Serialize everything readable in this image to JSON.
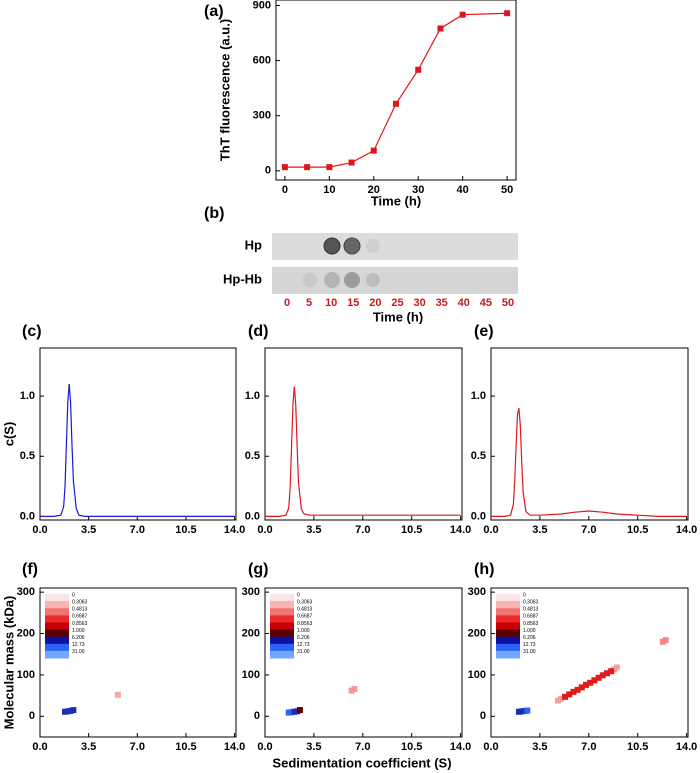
{
  "chart_data": [
    {
      "type": "line",
      "title": "(a)",
      "y_label": "ThT fluorescence (a.u.)",
      "x_label": "Time (h)",
      "xlim": [
        -2,
        52
      ],
      "ylim": [
        -50,
        930
      ],
      "xticks": [
        0,
        10,
        20,
        30,
        40,
        50
      ],
      "yticks": [
        0,
        300,
        600,
        900
      ],
      "markers": true,
      "series": [
        {
          "color": "#e0161a",
          "x": [
            0,
            5,
            10,
            15,
            20,
            25,
            30,
            35,
            40,
            50
          ],
          "values": [
            20,
            20,
            20,
            45,
            110,
            365,
            550,
            775,
            850,
            858
          ]
        }
      ]
    },
    {
      "type": "blot",
      "title": "(b)",
      "rows": [
        "Hp",
        "Hp-Hb"
      ],
      "categories": [
        "0",
        "5",
        "10",
        "15",
        "20",
        "25",
        "30",
        "35",
        "40",
        "45",
        "50"
      ],
      "x_label": "Time (h)"
    },
    {
      "type": "line",
      "title": "(c)",
      "y_label": "c(S)",
      "xlim": [
        0,
        14.1
      ],
      "ylim": [
        -0.03,
        1.4
      ],
      "xticks": [
        {
          "value": 0,
          "label": "0.0"
        },
        3.5,
        {
          "value": 7,
          "label": "7.0"
        },
        10.5,
        {
          "value": 14,
          "label": "14.0"
        }
      ],
      "yticks": [
        {
          "value": 0,
          "label": "0.0"
        },
        0.5,
        {
          "value": 1,
          "label": "1.0"
        }
      ],
      "markers": false,
      "series": [
        {
          "color": "#1a1ad0",
          "x": [
            0,
            1.0,
            1.5,
            1.7,
            1.8,
            1.9,
            2.0,
            2.1,
            2.2,
            2.3,
            2.4,
            2.6,
            2.8,
            3.2,
            4,
            7,
            10.5,
            14
          ],
          "values": [
            0,
            0,
            0.01,
            0.08,
            0.25,
            0.6,
            0.95,
            1.1,
            0.95,
            0.6,
            0.3,
            0.07,
            0.01,
            0,
            0,
            0,
            0,
            0
          ]
        }
      ]
    },
    {
      "type": "line",
      "title": "(d)",
      "xlim": [
        0,
        14.1
      ],
      "ylim": [
        -0.03,
        1.4
      ],
      "xticks": [
        {
          "value": 0,
          "label": "0.0"
        },
        3.5,
        {
          "value": 7,
          "label": "7.0"
        },
        10.5,
        {
          "value": 14,
          "label": "14.0"
        }
      ],
      "yticks": [
        {
          "value": 0,
          "label": "0.0"
        },
        0.5,
        {
          "value": 1,
          "label": "1.0"
        }
      ],
      "markers": false,
      "series": [
        {
          "color": "#e0161a",
          "x": [
            0,
            1.0,
            1.5,
            1.7,
            1.8,
            1.9,
            2.0,
            2.1,
            2.2,
            2.3,
            2.4,
            2.6,
            2.8,
            3.2,
            4,
            7,
            10.5,
            14
          ],
          "values": [
            0,
            0,
            0.01,
            0.07,
            0.24,
            0.58,
            0.93,
            1.08,
            0.93,
            0.58,
            0.28,
            0.06,
            0.02,
            0.01,
            0.01,
            0.01,
            0.01,
            0.01
          ]
        }
      ]
    },
    {
      "type": "line",
      "title": "(e)",
      "xlim": [
        0,
        14.1
      ],
      "ylim": [
        -0.03,
        1.4
      ],
      "xticks": [
        {
          "value": 0,
          "label": "0.0"
        },
        3.5,
        {
          "value": 7,
          "label": "7.0"
        },
        10.5,
        {
          "value": 14,
          "label": "14.0"
        }
      ],
      "yticks": [
        {
          "value": 0,
          "label": "0.0"
        },
        0.5,
        {
          "value": 1,
          "label": "1.0"
        }
      ],
      "markers": false,
      "series": [
        {
          "color": "#e0161a",
          "x": [
            0,
            1.0,
            1.4,
            1.6,
            1.7,
            1.8,
            1.9,
            2.0,
            2.1,
            2.2,
            2.3,
            2.5,
            2.8,
            3.5,
            5,
            6,
            7,
            8,
            9,
            10.5,
            12,
            14
          ],
          "values": [
            0,
            0,
            0.01,
            0.1,
            0.3,
            0.6,
            0.85,
            0.9,
            0.75,
            0.45,
            0.2,
            0.04,
            0.01,
            0.01,
            0.02,
            0.035,
            0.045,
            0.035,
            0.02,
            0.01,
            0,
            0
          ]
        }
      ]
    },
    {
      "type": "scatter",
      "title": "(f)",
      "y_label": "Molecular mass (kDa)",
      "xlim": [
        0,
        14.1
      ],
      "ylim": [
        -50,
        310
      ],
      "xticks": [
        {
          "value": 0,
          "label": "0.0"
        },
        3.5,
        {
          "value": 7,
          "label": "7.0"
        },
        10.5,
        {
          "value": 14,
          "label": "14.0"
        }
      ],
      "yticks": [
        0,
        100,
        200,
        300
      ],
      "colorbar": {
        "colors": [
          "#fde4e4",
          "#f8b4b4",
          "#f27474",
          "#ec2a2a",
          "#c40000",
          "#5a0000",
          "#1010a0",
          "#2a64f0",
          "#6ea8ff"
        ],
        "ticks": [
          0,
          0.3063,
          0.4813,
          0.6687,
          0.8563,
          {
            "value": 1,
            "label": "1.000"
          },
          6.206,
          12.73,
          {
            "value": 31,
            "label": "31.00"
          }
        ]
      },
      "series": [
        {
          "color": "#1a2fb8",
          "x": [
            1.8,
            2.0,
            2.2,
            2.4
          ],
          "values": [
            11,
            12,
            13,
            15
          ]
        },
        {
          "color": "#f4a8a8",
          "x": [
            5.6
          ],
          "values": [
            52
          ]
        }
      ]
    },
    {
      "type": "scatter",
      "title": "(g)",
      "x_label": "Sedimentation coefficient (S)",
      "xlim": [
        0,
        14.1
      ],
      "ylim": [
        -50,
        310
      ],
      "xticks": [
        {
          "value": 0,
          "label": "0.0"
        },
        3.5,
        {
          "value": 7,
          "label": "7.0"
        },
        10.5,
        {
          "value": 14,
          "label": "14.0"
        }
      ],
      "yticks": [
        0,
        100,
        200,
        300
      ],
      "colorbar": {
        "colors": [
          "#fde4e4",
          "#f8b4b4",
          "#f27474",
          "#ec2a2a",
          "#c40000",
          "#5a0000",
          "#1010a0",
          "#2a64f0",
          "#6ea8ff"
        ],
        "ticks": [
          0,
          0.3063,
          0.4813,
          0.6687,
          0.8563,
          {
            "value": 1,
            "label": "1.000"
          },
          6.206,
          12.73,
          {
            "value": 31,
            "label": "31.00"
          }
        ]
      },
      "series": [
        {
          "color": "#2a64f0",
          "x": [
            1.7,
            1.9
          ],
          "values": [
            9,
            10
          ]
        },
        {
          "color": "#1a2fb8",
          "x": [
            2.1,
            2.3
          ],
          "values": [
            11,
            12
          ]
        },
        {
          "color": "#5a0000",
          "x": [
            2.5
          ],
          "values": [
            15
          ]
        },
        {
          "color": "#f29a9a",
          "x": [
            6.2,
            6.4
          ],
          "values": [
            62,
            66
          ]
        }
      ]
    },
    {
      "type": "scatter",
      "title": "(h)",
      "xlim": [
        0,
        14.1
      ],
      "ylim": [
        -50,
        310
      ],
      "xticks": [
        {
          "value": 0,
          "label": "0.0"
        },
        3.5,
        {
          "value": 7,
          "label": "7.0"
        },
        10.5,
        {
          "value": 14,
          "label": "14.0"
        }
      ],
      "yticks": [
        0,
        100,
        200,
        300
      ],
      "colorbar": {
        "colors": [
          "#fde4e4",
          "#f8b4b4",
          "#f27474",
          "#ec2a2a",
          "#c40000",
          "#5a0000",
          "#1010a0",
          "#2a64f0",
          "#6ea8ff"
        ],
        "ticks": [
          0,
          0.3063,
          0.4813,
          0.6687,
          0.8563,
          {
            "value": 1,
            "label": "1.000"
          },
          6.206,
          12.73,
          {
            "value": 31,
            "label": "31.00"
          }
        ]
      },
      "series": [
        {
          "color": "#1a2fb8",
          "x": [
            2.0,
            2.2,
            2.4
          ],
          "values": [
            11,
            12,
            13
          ]
        },
        {
          "color": "#2a64f0",
          "x": [
            2.6
          ],
          "values": [
            14
          ]
        },
        {
          "color": "#f4a0a0",
          "x": [
            4.8,
            5.0,
            8.8,
            9.0
          ],
          "values": [
            38,
            42,
            113,
            118
          ]
        },
        {
          "color": "#e21a1a",
          "x": [
            5.3,
            5.6,
            5.9,
            6.2,
            6.5,
            6.8,
            7.1,
            7.4,
            7.7,
            8.0,
            8.3,
            8.6
          ],
          "values": [
            47,
            53,
            59,
            64,
            70,
            76,
            81,
            87,
            93,
            99,
            104,
            109
          ]
        },
        {
          "color": "#f08888",
          "x": [
            12.3,
            12.5
          ],
          "values": [
            180,
            184
          ]
        }
      ]
    }
  ]
}
